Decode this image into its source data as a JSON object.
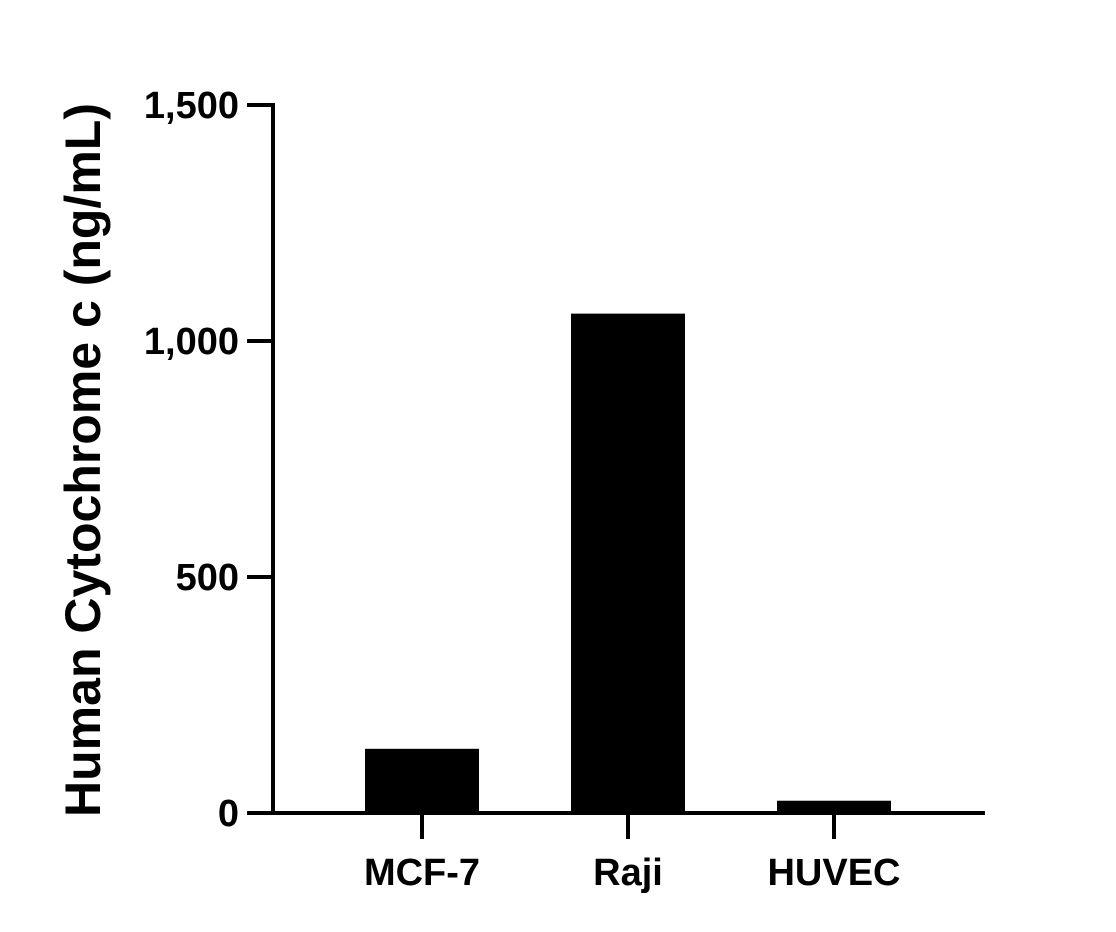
{
  "chart_data": {
    "type": "bar",
    "title": "",
    "xlabel": "",
    "ylabel": "Human Cytochrome c (ng/mL)",
    "categories": [
      "MCF-7",
      "Raji",
      "HUVEC"
    ],
    "values": [
      136,
      1058,
      26
    ],
    "ylim": [
      0,
      1500
    ],
    "yticks": [
      0,
      500,
      1000,
      1500
    ],
    "ytick_labels": [
      "0",
      "500",
      "1,000",
      "1,500"
    ],
    "grid": false,
    "legend": "none",
    "bar_color": "#000000",
    "axis_color": "#000000"
  }
}
